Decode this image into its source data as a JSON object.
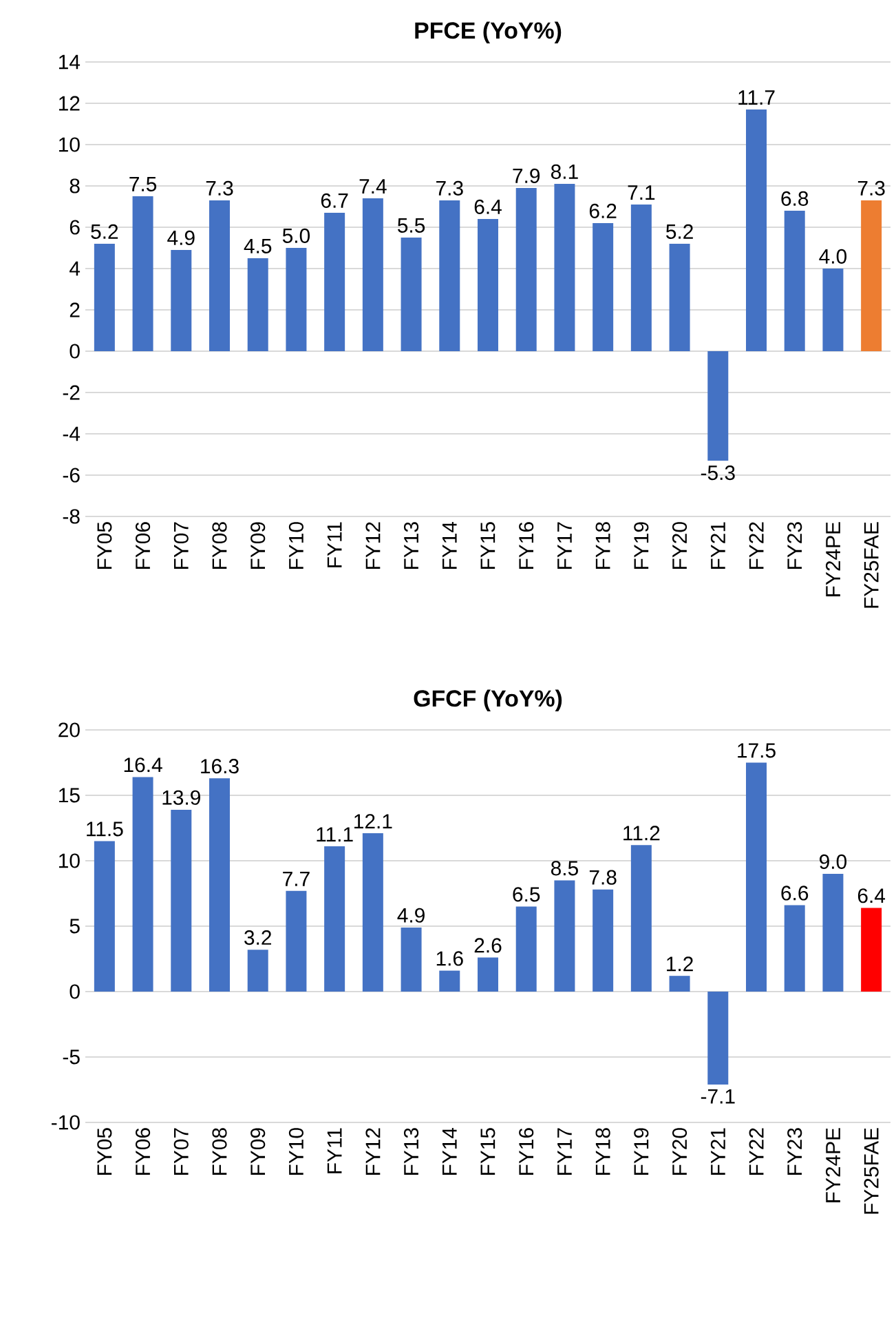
{
  "chart_data": [
    {
      "type": "bar",
      "title": "PFCE (YoY%)",
      "categories": [
        "FY05",
        "FY06",
        "FY07",
        "FY08",
        "FY09",
        "FY10",
        "FY11",
        "FY12",
        "FY13",
        "FY14",
        "FY15",
        "FY16",
        "FY17",
        "FY18",
        "FY19",
        "FY20",
        "FY21",
        "FY22",
        "FY23",
        "FY24PE",
        "FY25FAE"
      ],
      "values": [
        5.2,
        7.5,
        4.9,
        7.3,
        4.5,
        5.0,
        6.7,
        7.4,
        5.5,
        7.3,
        6.4,
        7.9,
        8.1,
        6.2,
        7.1,
        5.2,
        -5.3,
        11.7,
        6.8,
        4.0,
        7.3
      ],
      "colors": [
        "#4472c4",
        "#4472c4",
        "#4472c4",
        "#4472c4",
        "#4472c4",
        "#4472c4",
        "#4472c4",
        "#4472c4",
        "#4472c4",
        "#4472c4",
        "#4472c4",
        "#4472c4",
        "#4472c4",
        "#4472c4",
        "#4472c4",
        "#4472c4",
        "#4472c4",
        "#4472c4",
        "#4472c4",
        "#4472c4",
        "#ed7d31"
      ],
      "value_labels": [
        "5.2",
        "7.5",
        "4.9",
        "7.3",
        "4.5",
        "5.0",
        "6.7",
        "7.4",
        "5.5",
        "7.3",
        "6.4",
        "7.9",
        "8.1",
        "6.2",
        "7.1",
        "5.2",
        "-5.3",
        "11.7",
        "6.8",
        "4.0",
        "7.3"
      ],
      "ylim": [
        -8,
        14
      ],
      "yticks": [
        -8,
        -6,
        -4,
        -2,
        0,
        2,
        4,
        6,
        8,
        10,
        12,
        14
      ],
      "grid": "y"
    },
    {
      "type": "bar",
      "title": "GFCF (YoY%)",
      "categories": [
        "FY05",
        "FY06",
        "FY07",
        "FY08",
        "FY09",
        "FY10",
        "FY11",
        "FY12",
        "FY13",
        "FY14",
        "FY15",
        "FY16",
        "FY17",
        "FY18",
        "FY19",
        "FY20",
        "FY21",
        "FY22",
        "FY23",
        "FY24PE",
        "FY25FAE"
      ],
      "values": [
        11.5,
        16.4,
        13.9,
        16.3,
        3.2,
        7.7,
        11.1,
        12.1,
        4.9,
        1.6,
        2.6,
        6.5,
        8.5,
        7.8,
        11.2,
        1.2,
        -7.1,
        17.5,
        6.6,
        9.0,
        6.4
      ],
      "colors": [
        "#4472c4",
        "#4472c4",
        "#4472c4",
        "#4472c4",
        "#4472c4",
        "#4472c4",
        "#4472c4",
        "#4472c4",
        "#4472c4",
        "#4472c4",
        "#4472c4",
        "#4472c4",
        "#4472c4",
        "#4472c4",
        "#4472c4",
        "#4472c4",
        "#4472c4",
        "#4472c4",
        "#4472c4",
        "#4472c4",
        "#ff0000"
      ],
      "value_labels": [
        "11.5",
        "16.4",
        "13.9",
        "16.3",
        "3.2",
        "7.7",
        "11.1",
        "12.1",
        "4.9",
        "1.6",
        "2.6",
        "6.5",
        "8.5",
        "7.8",
        "11.2",
        "1.2",
        "-7.1",
        "17.5",
        "6.6",
        "9.0",
        "6.4"
      ],
      "ylim": [
        -10,
        20
      ],
      "yticks": [
        -10,
        -5,
        0,
        5,
        10,
        15,
        20
      ],
      "grid": "y"
    }
  ]
}
